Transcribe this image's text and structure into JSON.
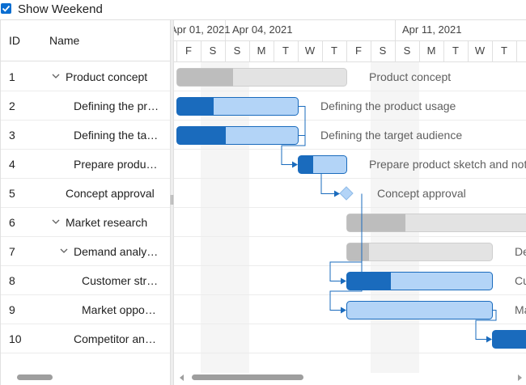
{
  "toolbar": {
    "show_weekend_label": "Show Weekend",
    "show_weekend_checked": true
  },
  "grid": {
    "columns": {
      "id": "ID",
      "name": "Name"
    },
    "rows": [
      {
        "id": "1",
        "name": "Product concept",
        "level": 0,
        "expandable": true
      },
      {
        "id": "2",
        "name": "Defining the product usage",
        "level": 1,
        "expandable": false
      },
      {
        "id": "3",
        "name": "Defining the target audience",
        "level": 1,
        "expandable": false
      },
      {
        "id": "4",
        "name": "Prepare product sketch and notes",
        "level": 1,
        "expandable": false
      },
      {
        "id": "5",
        "name": "Concept approval",
        "level": 0,
        "expandable": false
      },
      {
        "id": "6",
        "name": "Market research",
        "level": 0,
        "expandable": true
      },
      {
        "id": "7",
        "name": "Demand analysis",
        "level": 1,
        "expandable": true
      },
      {
        "id": "8",
        "name": "Customer strength",
        "level": 2,
        "expandable": false
      },
      {
        "id": "9",
        "name": "Market opportunity analysis",
        "level": 2,
        "expandable": false
      },
      {
        "id": "10",
        "name": "Competitor analysis",
        "level": 1,
        "expandable": false
      }
    ]
  },
  "timeline": {
    "weeks": [
      "Apr 01, 2021",
      "Apr 04, 2021",
      "Apr 11, 2021"
    ],
    "days": [
      "F",
      "S",
      "S",
      "M",
      "T",
      "W",
      "T",
      "F",
      "S",
      "S",
      "M",
      "T",
      "W",
      "T"
    ]
  },
  "bar_labels": [
    "Product concept",
    "Defining the product usage",
    "Defining the target audience",
    "Prepare product sketch and notes",
    "Concept approval",
    "Demand analysis",
    "Customer strength",
    "Market opportunity analysis"
  ],
  "colors": {
    "accent": "#1a6bbd",
    "bar_light": "#b3d4f7",
    "parent_bar": "#e3e3e3",
    "parent_progress": "#bdbdbd",
    "weekend": "#f5f5f5"
  }
}
